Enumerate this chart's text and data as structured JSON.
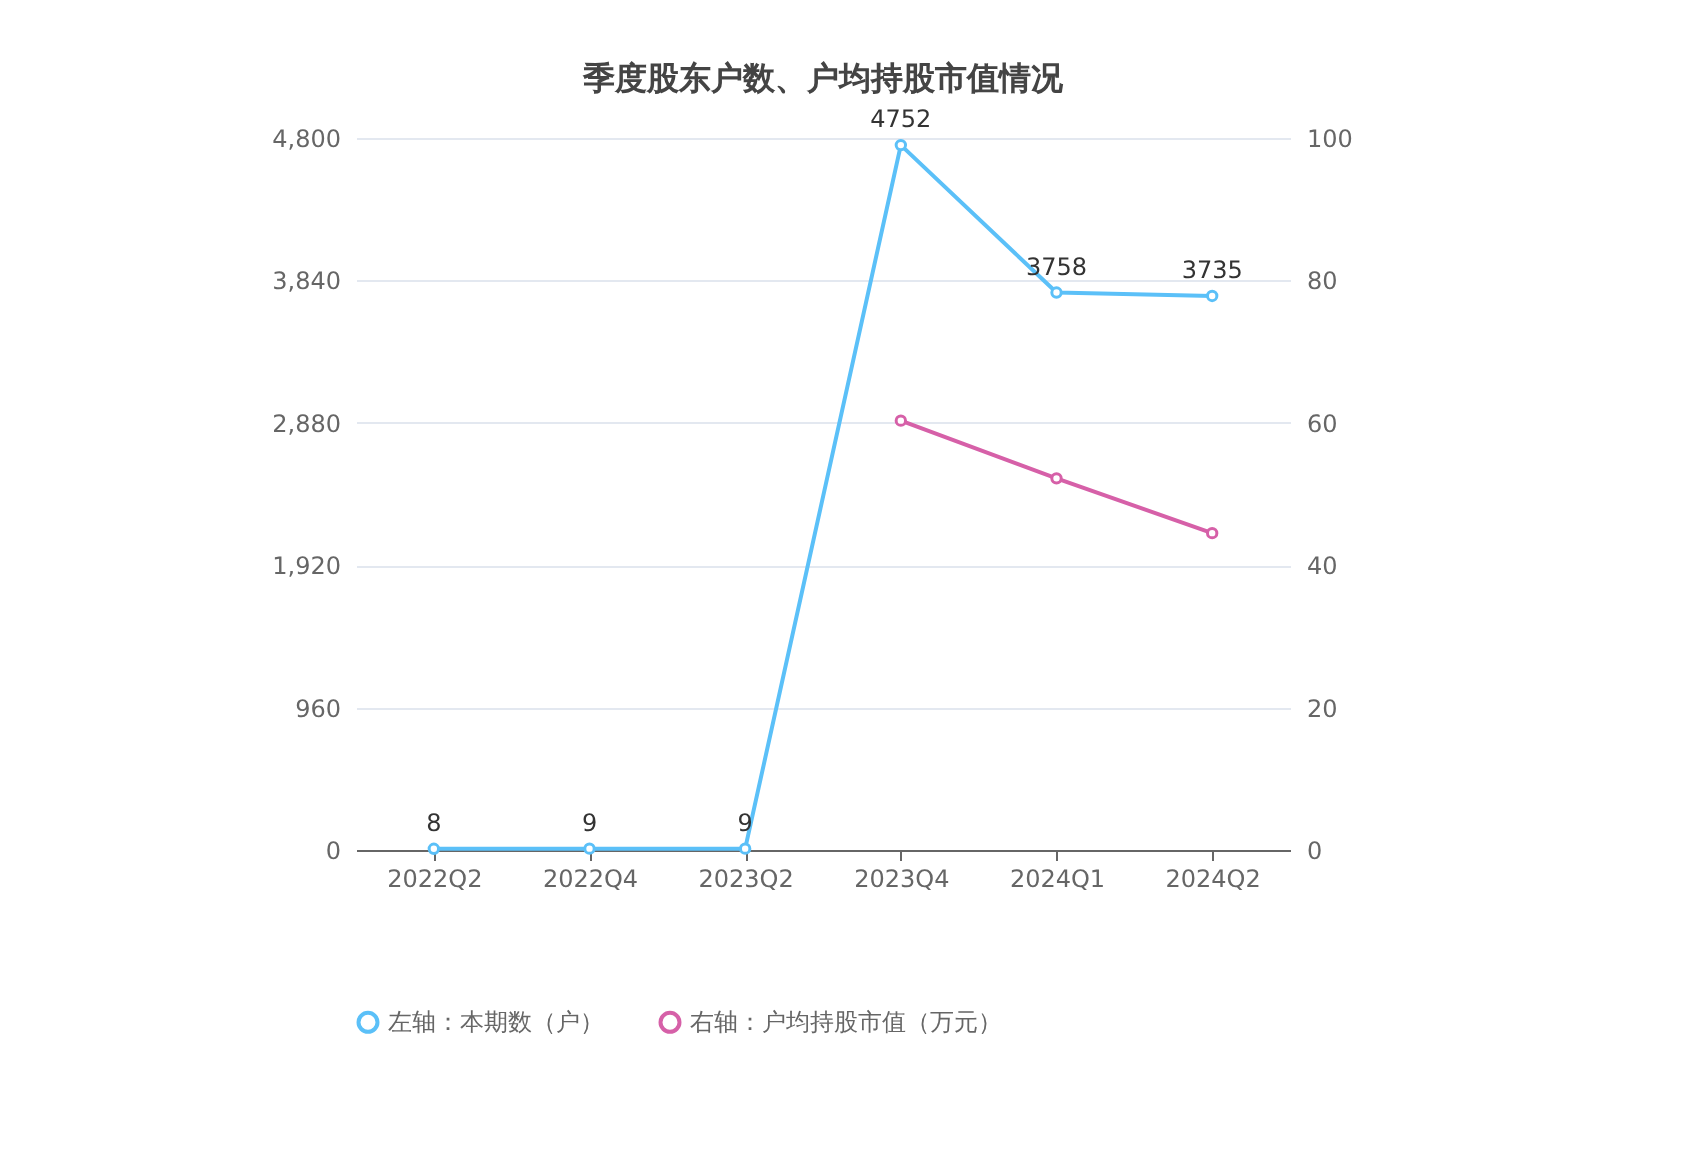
{
  "chart_data": {
    "type": "line",
    "title": "季度股东户数、户均持股市值情况",
    "categories": [
      "2022Q2",
      "2022Q4",
      "2023Q2",
      "2023Q4",
      "2024Q1",
      "2024Q2"
    ],
    "series": [
      {
        "name": "左轴：本期数（户）",
        "color": "#5bc0f8",
        "values": [
          8,
          9,
          9,
          4752,
          3758,
          3735
        ],
        "value_labels": [
          "8",
          "9",
          "9",
          "4752",
          "3758",
          "3735"
        ]
      },
      {
        "name": "右轴：户均持股市值（万元）",
        "color": "#d660a8",
        "axis": "y2",
        "values": [
          null,
          null,
          null,
          60.3,
          52.2,
          44.5
        ]
      }
    ],
    "ylim": [
      0,
      4800
    ],
    "yticks": [
      0,
      {
        "value": 960,
        "label": "960"
      },
      {
        "value": 1920,
        "label": "1,920"
      },
      {
        "value": 2880,
        "label": "2,880"
      },
      {
        "value": 3840,
        "label": "3,840"
      },
      {
        "value": 4800,
        "label": "4,800"
      }
    ],
    "y2lim": [
      0,
      100
    ],
    "y2ticks": [
      0,
      20,
      40,
      60,
      80,
      100
    ],
    "grid": "y",
    "legend": "bottom",
    "marker": "circle",
    "line_style": "solid"
  }
}
